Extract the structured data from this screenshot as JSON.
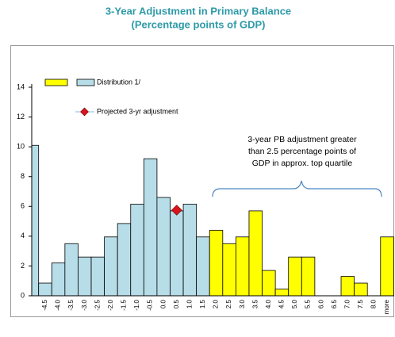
{
  "chart_data": {
    "type": "bar",
    "title": "3-Year Adjustment in Primary Balance",
    "subtitle": "(Percentage points of GDP)",
    "categories": [
      null,
      "-4.5",
      "-4.0",
      "-3.5",
      "-3.0",
      "-2.5",
      "-2.0",
      "-1.5",
      "-1.0",
      "-0.5",
      "0.0",
      "0.5",
      "1.0",
      "1.5",
      "2.0",
      "2.5",
      "3.0",
      "3.5",
      "4.0",
      "4.5",
      "5.0",
      "5.5",
      "6.0",
      "6.5",
      "7.0",
      "7.5",
      "8.0",
      "more"
    ],
    "series": [
      {
        "name": "Distribution 1/",
        "values": [
          10.1,
          0.85,
          2.2,
          3.5,
          2.6,
          2.6,
          3.95,
          4.85,
          6.15,
          9.2,
          6.6,
          5.7,
          6.15,
          3.95,
          4.4,
          3.5,
          3.95,
          5.7,
          1.7,
          0.45,
          2.6,
          2.6,
          0,
          0,
          1.3,
          0.85,
          0,
          3.95
        ],
        "colors": [
          "#b7dde8",
          "#b7dde8",
          "#b7dde8",
          "#b7dde8",
          "#b7dde8",
          "#b7dde8",
          "#b7dde8",
          "#b7dde8",
          "#b7dde8",
          "#b7dde8",
          "#b7dde8",
          "#b7dde8",
          "#b7dde8",
          "#b7dde8",
          "#ffff00",
          "#ffff00",
          "#ffff00",
          "#ffff00",
          "#ffff00",
          "#ffff00",
          "#ffff00",
          "#ffff00",
          "#ffff00",
          "#ffff00",
          "#ffff00",
          "#ffff00",
          "#ffff00",
          "#ffff00"
        ],
        "legend_colors": [
          "#ffff00",
          "#b7dde8"
        ]
      },
      {
        "name": "Projected 3-yr adjustment",
        "type": "point",
        "color": "#d9141b",
        "values": [
          null,
          null,
          null,
          null,
          null,
          null,
          null,
          null,
          null,
          null,
          null,
          5.75,
          null,
          null,
          null,
          null,
          null,
          null,
          null,
          null,
          null,
          null,
          null,
          null,
          null,
          null,
          null,
          null
        ]
      }
    ],
    "ylim": [
      0,
      14.3
    ],
    "yticks": [
      0,
      2,
      4,
      6,
      8,
      10,
      12,
      14
    ],
    "legend": "upper left",
    "annotation": [
      "3-year PB adjustment greater",
      "than 2.5 percentage points of",
      "GDP in approx. top quartile"
    ]
  }
}
